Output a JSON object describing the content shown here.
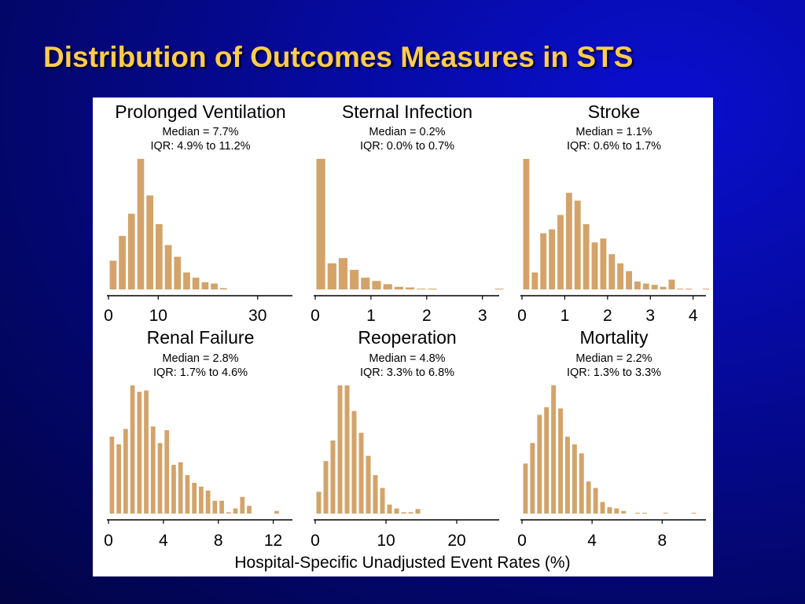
{
  "slide": {
    "title": "Distribution of Outcomes Measures in STS",
    "title_color": "#ffcc4d"
  },
  "figure": {
    "bar_color": "#d3a36a",
    "xlabel": "Hospital-Specific Unadjusted Event Rates (%)"
  },
  "chart_data": [
    {
      "type": "bar",
      "title": "Prolonged Ventilation",
      "median": "Median = 7.7%",
      "iqr": "IQR: 4.9% to 11.2%",
      "x_ticks": [
        0,
        10,
        30
      ],
      "xlim": [
        0,
        37
      ],
      "bin_start": 0,
      "bin_width": 1.85,
      "values": [
        0.22,
        0.41,
        0.58,
        1.0,
        0.72,
        0.5,
        0.34,
        0.25,
        0.13,
        0.09,
        0.055,
        0.045,
        0.01
      ]
    },
    {
      "type": "bar",
      "title": "Sternal Infection",
      "median": "Median = 0.2%",
      "iqr": "IQR: 0.0% to 0.7%",
      "x_ticks": [
        0,
        1,
        2,
        3
      ],
      "xlim": [
        0,
        3.3
      ],
      "bin_start": 0,
      "bin_width": 0.2,
      "values": [
        1.0,
        0.2,
        0.24,
        0.15,
        0.09,
        0.065,
        0.04,
        0.02,
        0.015,
        0.005,
        0.005,
        0.0,
        0.0,
        0.0,
        0.0,
        0.0,
        0.005
      ]
    },
    {
      "type": "bar",
      "title": "Stroke",
      "median": "Median = 1.1%",
      "iqr": "IQR: 0.6% to 1.7%",
      "x_ticks": [
        0,
        1,
        2,
        3,
        4
      ],
      "xlim": [
        0,
        4.3
      ],
      "bin_start": 0,
      "bin_width": 0.2,
      "values": [
        1.0,
        0.13,
        0.43,
        0.46,
        0.57,
        0.74,
        0.68,
        0.5,
        0.36,
        0.39,
        0.27,
        0.2,
        0.14,
        0.06,
        0.045,
        0.035,
        0.02,
        0.075,
        0.005,
        0.005,
        0.0,
        0.005
      ]
    },
    {
      "type": "bar",
      "title": "Renal Failure",
      "median": "Median = 2.8%",
      "iqr": "IQR: 1.7% to 4.6%",
      "x_ticks": [
        0,
        4,
        8,
        12
      ],
      "xlim": [
        0,
        13.4
      ],
      "bin_start": 0,
      "bin_width": 0.5,
      "values": [
        0.6,
        0.54,
        0.66,
        1.0,
        0.95,
        0.96,
        0.68,
        0.55,
        0.65,
        0.38,
        0.4,
        0.3,
        0.24,
        0.21,
        0.18,
        0.1,
        0.1,
        0.01,
        0.04,
        0.13,
        0.06,
        0.0,
        0.0,
        0.0,
        0.02
      ]
    },
    {
      "type": "bar",
      "title": "Reoperation",
      "median": "Median = 4.8%",
      "iqr": "IQR: 3.3% to 6.8%",
      "x_ticks": [
        0,
        10,
        20
      ],
      "xlim": [
        0,
        26
      ],
      "bin_start": 0,
      "bin_width": 1.0,
      "values": [
        0.17,
        0.41,
        0.57,
        1.0,
        1.0,
        0.8,
        0.63,
        0.45,
        0.3,
        0.2,
        0.07,
        0.04,
        0.01,
        0.01,
        0.035
      ]
    },
    {
      "type": "bar",
      "title": "Mortality",
      "median": "Median = 2.2%",
      "iqr": "IQR: 1.3% to 3.3%",
      "x_ticks": [
        0,
        4,
        8
      ],
      "xlim": [
        0,
        10.5
      ],
      "bin_start": 0,
      "bin_width": 0.4,
      "values": [
        0.39,
        0.55,
        0.77,
        0.83,
        1.0,
        0.82,
        0.6,
        0.54,
        0.47,
        0.25,
        0.2,
        0.09,
        0.05,
        0.04,
        0.02,
        0.0,
        0.005,
        0.005,
        0.0,
        0.0,
        0.005,
        0.0,
        0.0,
        0.0,
        0.005
      ]
    }
  ]
}
